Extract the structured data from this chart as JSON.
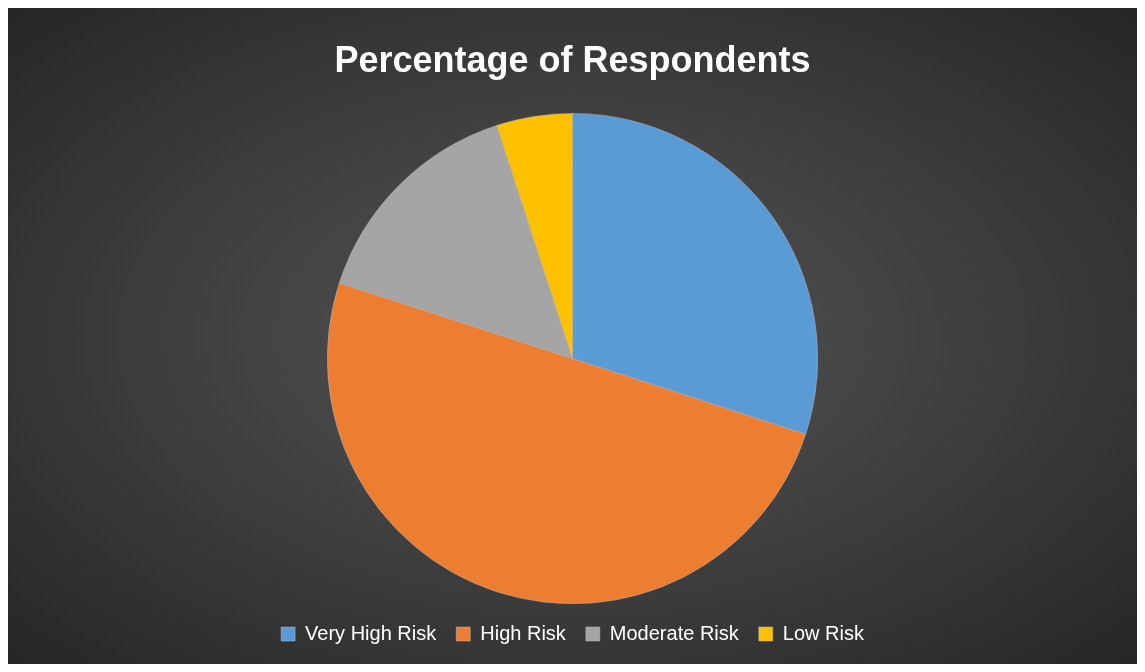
{
  "chart_data": {
    "type": "pie",
    "title": "Percentage of Respondents",
    "categories": [
      "Very High Risk",
      "High Risk",
      "Moderate Risk",
      "Low Risk"
    ],
    "values": [
      30,
      50,
      15,
      5
    ],
    "colors": [
      "#5b9bd5",
      "#ed7d31",
      "#a5a5a5",
      "#ffc000"
    ],
    "legend": "bottom"
  }
}
